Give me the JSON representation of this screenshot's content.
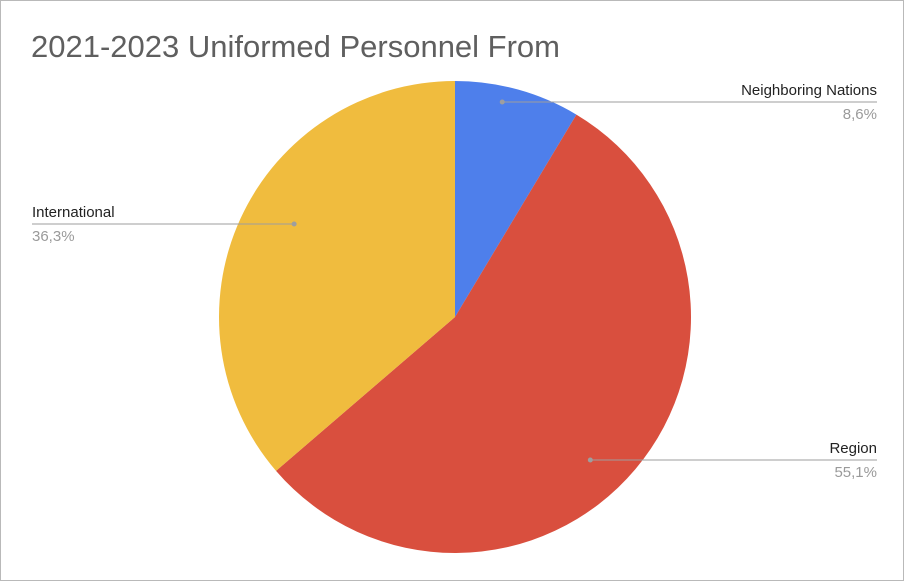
{
  "chart_data": {
    "type": "pie",
    "title": "2021-2023 Uniformed Personnel From",
    "slices": [
      {
        "label": "Neighboring Nations",
        "value": 8.6,
        "display": "8,6%",
        "color": "#4E7FEB",
        "label_side": "right"
      },
      {
        "label": "Region",
        "value": 55.1,
        "display": "55,1%",
        "color": "#D94F3E",
        "label_side": "right"
      },
      {
        "label": "International",
        "value": 36.3,
        "display": "36,3%",
        "color": "#F0BC3E",
        "label_side": "left"
      }
    ],
    "legend": "none (labels with leader lines)"
  }
}
